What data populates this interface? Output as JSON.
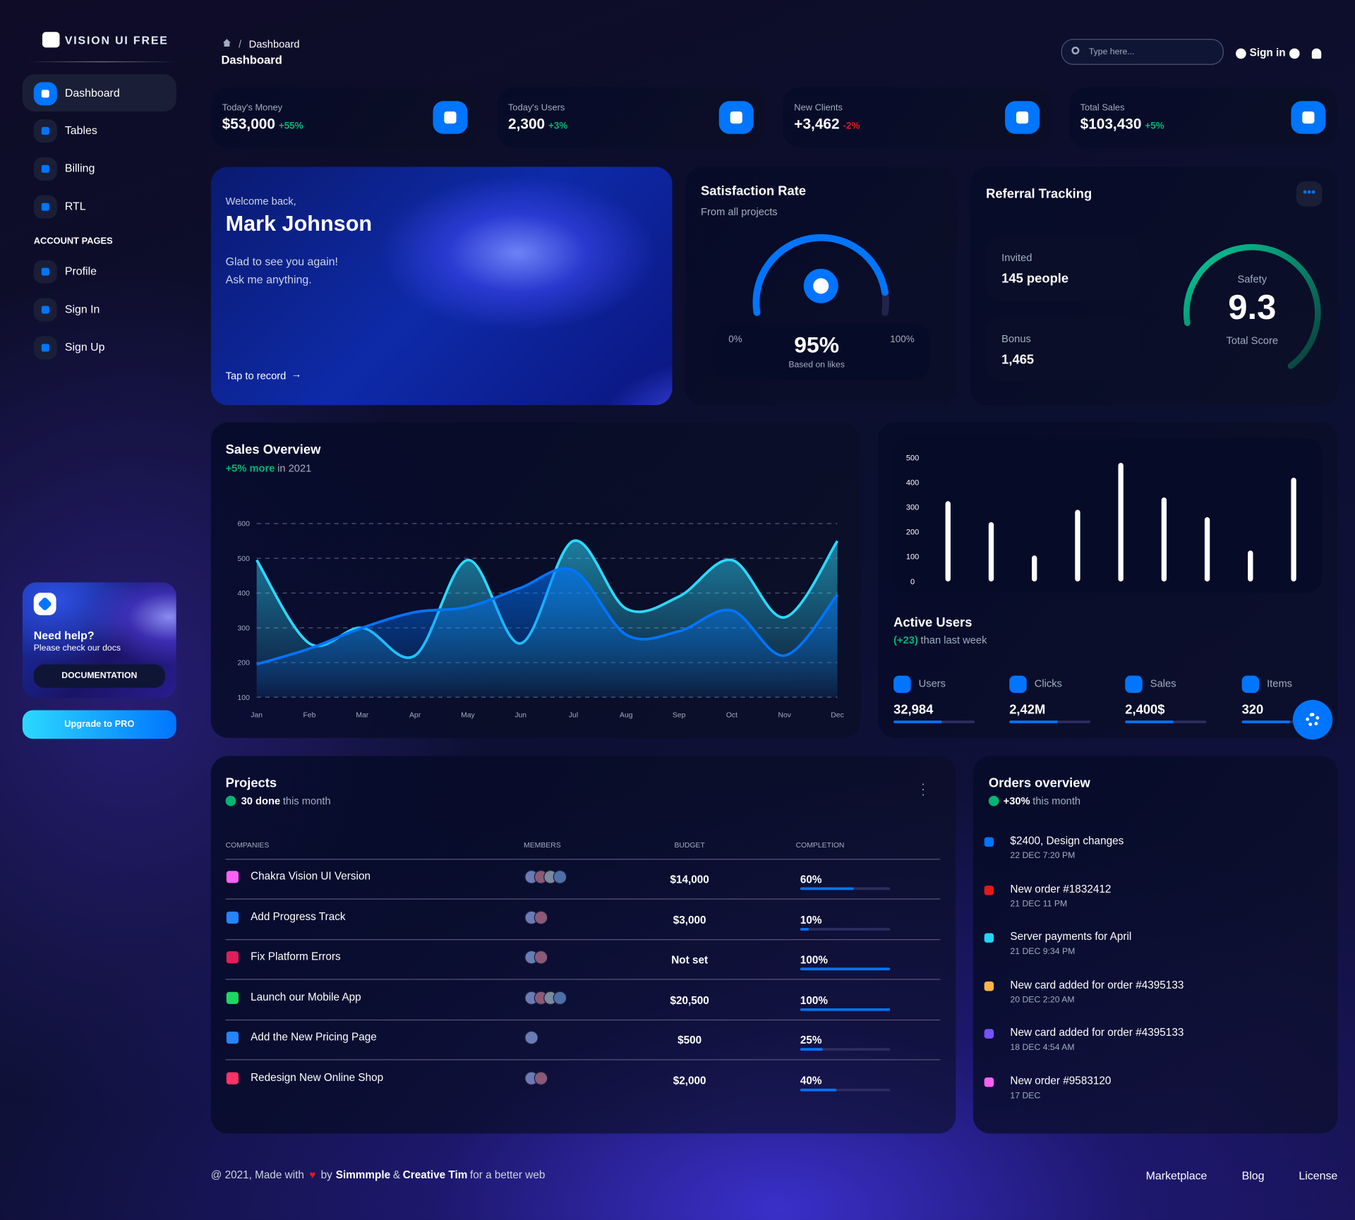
{
  "sidebar": {
    "brand": "VISION UI FREE",
    "nav": [
      "Dashboard",
      "Tables",
      "Billing",
      "RTL"
    ],
    "section": "ACCOUNT PAGES",
    "account_nav": [
      "Profile",
      "Sign In",
      "Sign Up"
    ],
    "help": {
      "title": "Need help?",
      "text": "Please check our docs",
      "button": "DOCUMENTATION"
    },
    "upgrade": "Upgrade to PRO"
  },
  "header": {
    "breadcrumb": "Dashboard",
    "title": "Dashboard",
    "search_placeholder": "Type here...",
    "sign_in": "Sign in"
  },
  "stats": [
    {
      "label": "Today's Money",
      "value": "$53,000",
      "change": "+55%"
    },
    {
      "label": "Today's Users",
      "value": "2,300",
      "change": "+3%"
    },
    {
      "label": "New Clients",
      "value": "+3,462",
      "change": "-2%"
    },
    {
      "label": "Total Sales",
      "value": "$103,430",
      "change": "+5%"
    }
  ],
  "welcome": {
    "greeting": "Welcome back,",
    "name": "Mark Johnson",
    "line1": "Glad to see you again!",
    "line2": "Ask me anything.",
    "action": "Tap to record"
  },
  "satisfaction": {
    "title": "Satisfaction Rate",
    "subtitle": "From all projects",
    "min": "0%",
    "value": "95%",
    "max": "100%",
    "caption": "Based on likes"
  },
  "referral": {
    "title": "Referral Tracking",
    "invited_label": "Invited",
    "invited": "145 people",
    "bonus_label": "Bonus",
    "bonus": "1,465",
    "safety": "Safety",
    "score": "9.3",
    "score_label": "Total Score"
  },
  "chart_data": [
    {
      "type": "line",
      "title": "Sales Overview",
      "subtitle_highlight": "+5% more",
      "subtitle": "in 2021",
      "categories": [
        "Jan",
        "Feb",
        "Mar",
        "Apr",
        "May",
        "Jun",
        "Jul",
        "Aug",
        "Sep",
        "Oct",
        "Nov",
        "Dec"
      ],
      "series": [
        {
          "color": "#2cd9ff",
          "values": [
            495,
            255,
            300,
            220,
            495,
            255,
            550,
            355,
            390,
            495,
            330,
            550
          ]
        },
        {
          "color": "#0075ff",
          "values": [
            195,
            240,
            300,
            345,
            360,
            415,
            465,
            280,
            290,
            350,
            220,
            395
          ]
        }
      ],
      "ylim": [
        100,
        600
      ],
      "yticks": [
        100,
        200,
        300,
        400,
        500,
        600
      ],
      "grid": true
    },
    {
      "type": "bar",
      "categories": [
        null,
        null,
        null,
        null,
        null,
        null,
        null,
        null,
        null
      ],
      "values": [
        325,
        240,
        105,
        290,
        480,
        340,
        260,
        125,
        420
      ],
      "color": "#ffffff",
      "ylim": [
        0,
        500
      ],
      "yticks": [
        0,
        100,
        200,
        300,
        400,
        500
      ],
      "grid": false
    }
  ],
  "active_users": {
    "title": "Active Users",
    "change": "(+23)",
    "change_text": "than last week",
    "stats": [
      {
        "label": "Users",
        "value": "32,984"
      },
      {
        "label": "Clicks",
        "value": "2,42M"
      },
      {
        "label": "Sales",
        "value": "2,400$"
      },
      {
        "label": "Items",
        "value": "320"
      }
    ]
  },
  "projects": {
    "title": "Projects",
    "done": "30 done",
    "done_text": "this month",
    "columns": [
      "COMPANIES",
      "MEMBERS",
      "BUDGET",
      "COMPLETION"
    ],
    "rows": [
      {
        "company": "Chakra Vision UI Version",
        "budget": "$14,000",
        "completion": 60,
        "completion_label": "60%"
      },
      {
        "company": "Add Progress Track",
        "budget": "$3,000",
        "completion": 10,
        "completion_label": "10%"
      },
      {
        "company": "Fix Platform Errors",
        "budget": "Not set",
        "completion": 100,
        "completion_label": "100%"
      },
      {
        "company": "Launch our Mobile App",
        "budget": "$20,500",
        "completion": 100,
        "completion_label": "100%"
      },
      {
        "company": "Add the New Pricing Page",
        "budget": "$500",
        "completion": 25,
        "completion_label": "25%"
      },
      {
        "company": "Redesign New Online Shop",
        "budget": "$2,000",
        "completion": 40,
        "completion_label": "40%"
      }
    ]
  },
  "orders": {
    "title": "Orders overview",
    "change": "+30%",
    "change_text": "this month",
    "items": [
      {
        "title": "$2400, Design changes",
        "date": "22 DEC 7:20 PM"
      },
      {
        "title": "New order #1832412",
        "date": "21 DEC 11 PM"
      },
      {
        "title": "Server payments for April",
        "date": "21 DEC 9:34 PM"
      },
      {
        "title": "New card added for order #4395133",
        "date": "20 DEC 2:20 AM"
      },
      {
        "title": "New card added for order #4395133",
        "date": "18 DEC 4:54 AM"
      },
      {
        "title": "New order #9583120",
        "date": "17 DEC"
      }
    ]
  },
  "footer": {
    "made": "@ 2021, Made with",
    "by": "by",
    "author1": "Simmmple",
    "and": "&",
    "author2": "Creative Tim",
    "rest": "for a better web",
    "links": [
      "Marketplace",
      "Blog",
      "License"
    ]
  }
}
